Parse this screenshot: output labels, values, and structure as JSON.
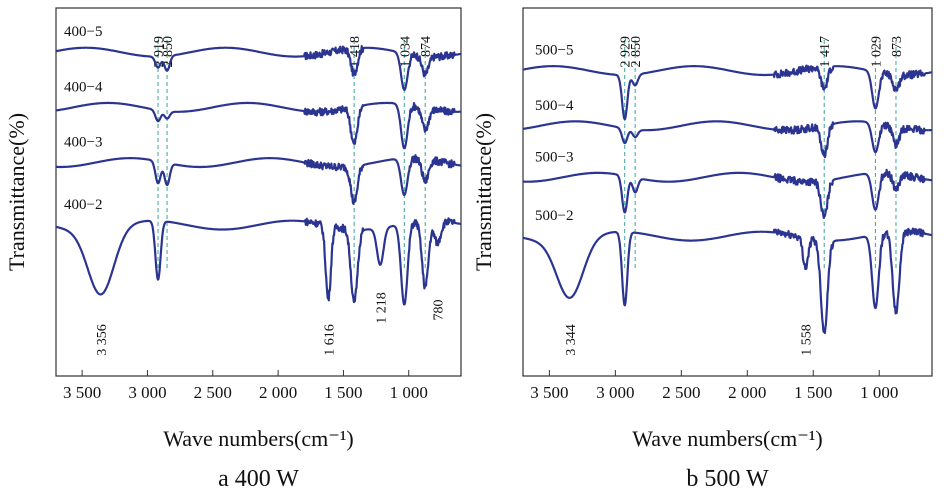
{
  "chart_data": [
    {
      "type": "line",
      "panel_label": "a  400 W",
      "xlabel": "Wave numbers(cm⁻¹)",
      "ylabel": "Transmittance(%)",
      "xlim": [
        3700,
        600
      ],
      "x_reversed": true,
      "x_ticks": [
        3500,
        3000,
        2500,
        2000,
        1500,
        1000
      ],
      "x_tick_labels": [
        "3 500",
        "3 000",
        "2 500",
        "2 000",
        "1 500",
        "1 000"
      ],
      "y_ticks_shown": false,
      "series": [
        {
          "name": "400−5",
          "baseline": 0.88,
          "features": [
            {
              "x": 2919,
              "depth": 0.03
            },
            {
              "x": 2850,
              "depth": 0.04
            },
            {
              "x": 1418,
              "depth": 0.07
            },
            {
              "x": 1034,
              "depth": 0.1
            },
            {
              "x": 874,
              "depth": 0.05
            }
          ]
        },
        {
          "name": "400−4",
          "baseline": 0.73,
          "features": [
            {
              "x": 2919,
              "depth": 0.03
            },
            {
              "x": 2850,
              "depth": 0.02
            },
            {
              "x": 1418,
              "depth": 0.1
            },
            {
              "x": 1034,
              "depth": 0.12
            },
            {
              "x": 874,
              "depth": 0.06
            }
          ]
        },
        {
          "name": "400−3",
          "baseline": 0.58,
          "features": [
            {
              "x": 2919,
              "depth": 0.06
            },
            {
              "x": 2850,
              "depth": 0.06
            },
            {
              "x": 1418,
              "depth": 0.1
            },
            {
              "x": 1034,
              "depth": 0.1
            },
            {
              "x": 874,
              "depth": 0.06
            }
          ]
        },
        {
          "name": "400−2",
          "baseline": 0.41,
          "features": [
            {
              "x": 3356,
              "depth": 0.18
            },
            {
              "x": 2919,
              "depth": 0.16
            },
            {
              "x": 1616,
              "depth": 0.2
            },
            {
              "x": 1418,
              "depth": 0.2
            },
            {
              "x": 1218,
              "depth": 0.1
            },
            {
              "x": 1034,
              "depth": 0.22
            },
            {
              "x": 874,
              "depth": 0.18
            },
            {
              "x": 780,
              "depth": 0.06
            }
          ]
        }
      ],
      "markers": [
        2919,
        2850,
        1418,
        1034,
        874
      ],
      "marker_labels": [
        "2 919",
        "2 850",
        "1 418",
        "1 034",
        "874"
      ],
      "annotations": [
        {
          "text": "3 356",
          "x": 3356
        },
        {
          "text": "1 616",
          "x": 1616
        },
        {
          "text": "1 218",
          "x": 1218
        },
        {
          "text": "780",
          "x": 780
        }
      ]
    },
    {
      "type": "line",
      "panel_label": "b  500 W",
      "xlabel": "Wave numbers(cm⁻¹)",
      "ylabel": "Transmittance(%)",
      "xlim": [
        3700,
        600
      ],
      "x_reversed": true,
      "x_ticks": [
        3500,
        3000,
        2500,
        2000,
        1500,
        1000
      ],
      "x_tick_labels": [
        "3 500",
        "3 000",
        "2 500",
        "2 000",
        "1 500",
        "1 000"
      ],
      "y_ticks_shown": false,
      "series": [
        {
          "name": "500−5",
          "baseline": 0.83,
          "features": [
            {
              "x": 2929,
              "depth": 0.12
            },
            {
              "x": 2850,
              "depth": 0.03
            },
            {
              "x": 1417,
              "depth": 0.06
            },
            {
              "x": 1029,
              "depth": 0.1
            },
            {
              "x": 873,
              "depth": 0.04
            }
          ]
        },
        {
          "name": "500−4",
          "baseline": 0.68,
          "features": [
            {
              "x": 2929,
              "depth": 0.04
            },
            {
              "x": 2850,
              "depth": 0.02
            },
            {
              "x": 1417,
              "depth": 0.08
            },
            {
              "x": 1029,
              "depth": 0.08
            },
            {
              "x": 873,
              "depth": 0.05
            }
          ]
        },
        {
          "name": "500−3",
          "baseline": 0.54,
          "features": [
            {
              "x": 2929,
              "depth": 0.1
            },
            {
              "x": 2850,
              "depth": 0.04
            },
            {
              "x": 1417,
              "depth": 0.1
            },
            {
              "x": 1029,
              "depth": 0.1
            },
            {
              "x": 873,
              "depth": 0.04
            }
          ]
        },
        {
          "name": "500−2",
          "baseline": 0.38,
          "features": [
            {
              "x": 3344,
              "depth": 0.16
            },
            {
              "x": 2929,
              "depth": 0.2
            },
            {
              "x": 1558,
              "depth": 0.08
            },
            {
              "x": 1417,
              "depth": 0.25
            },
            {
              "x": 1029,
              "depth": 0.2
            },
            {
              "x": 873,
              "depth": 0.22
            }
          ]
        }
      ],
      "markers": [
        2929,
        2850,
        1417,
        1029,
        873
      ],
      "marker_labels": [
        "2 929",
        "2 850",
        "1 417",
        "1 029",
        "873"
      ],
      "annotations": [
        {
          "text": "3 344",
          "x": 3344
        },
        {
          "text": "1 558",
          "x": 1558
        }
      ]
    }
  ]
}
